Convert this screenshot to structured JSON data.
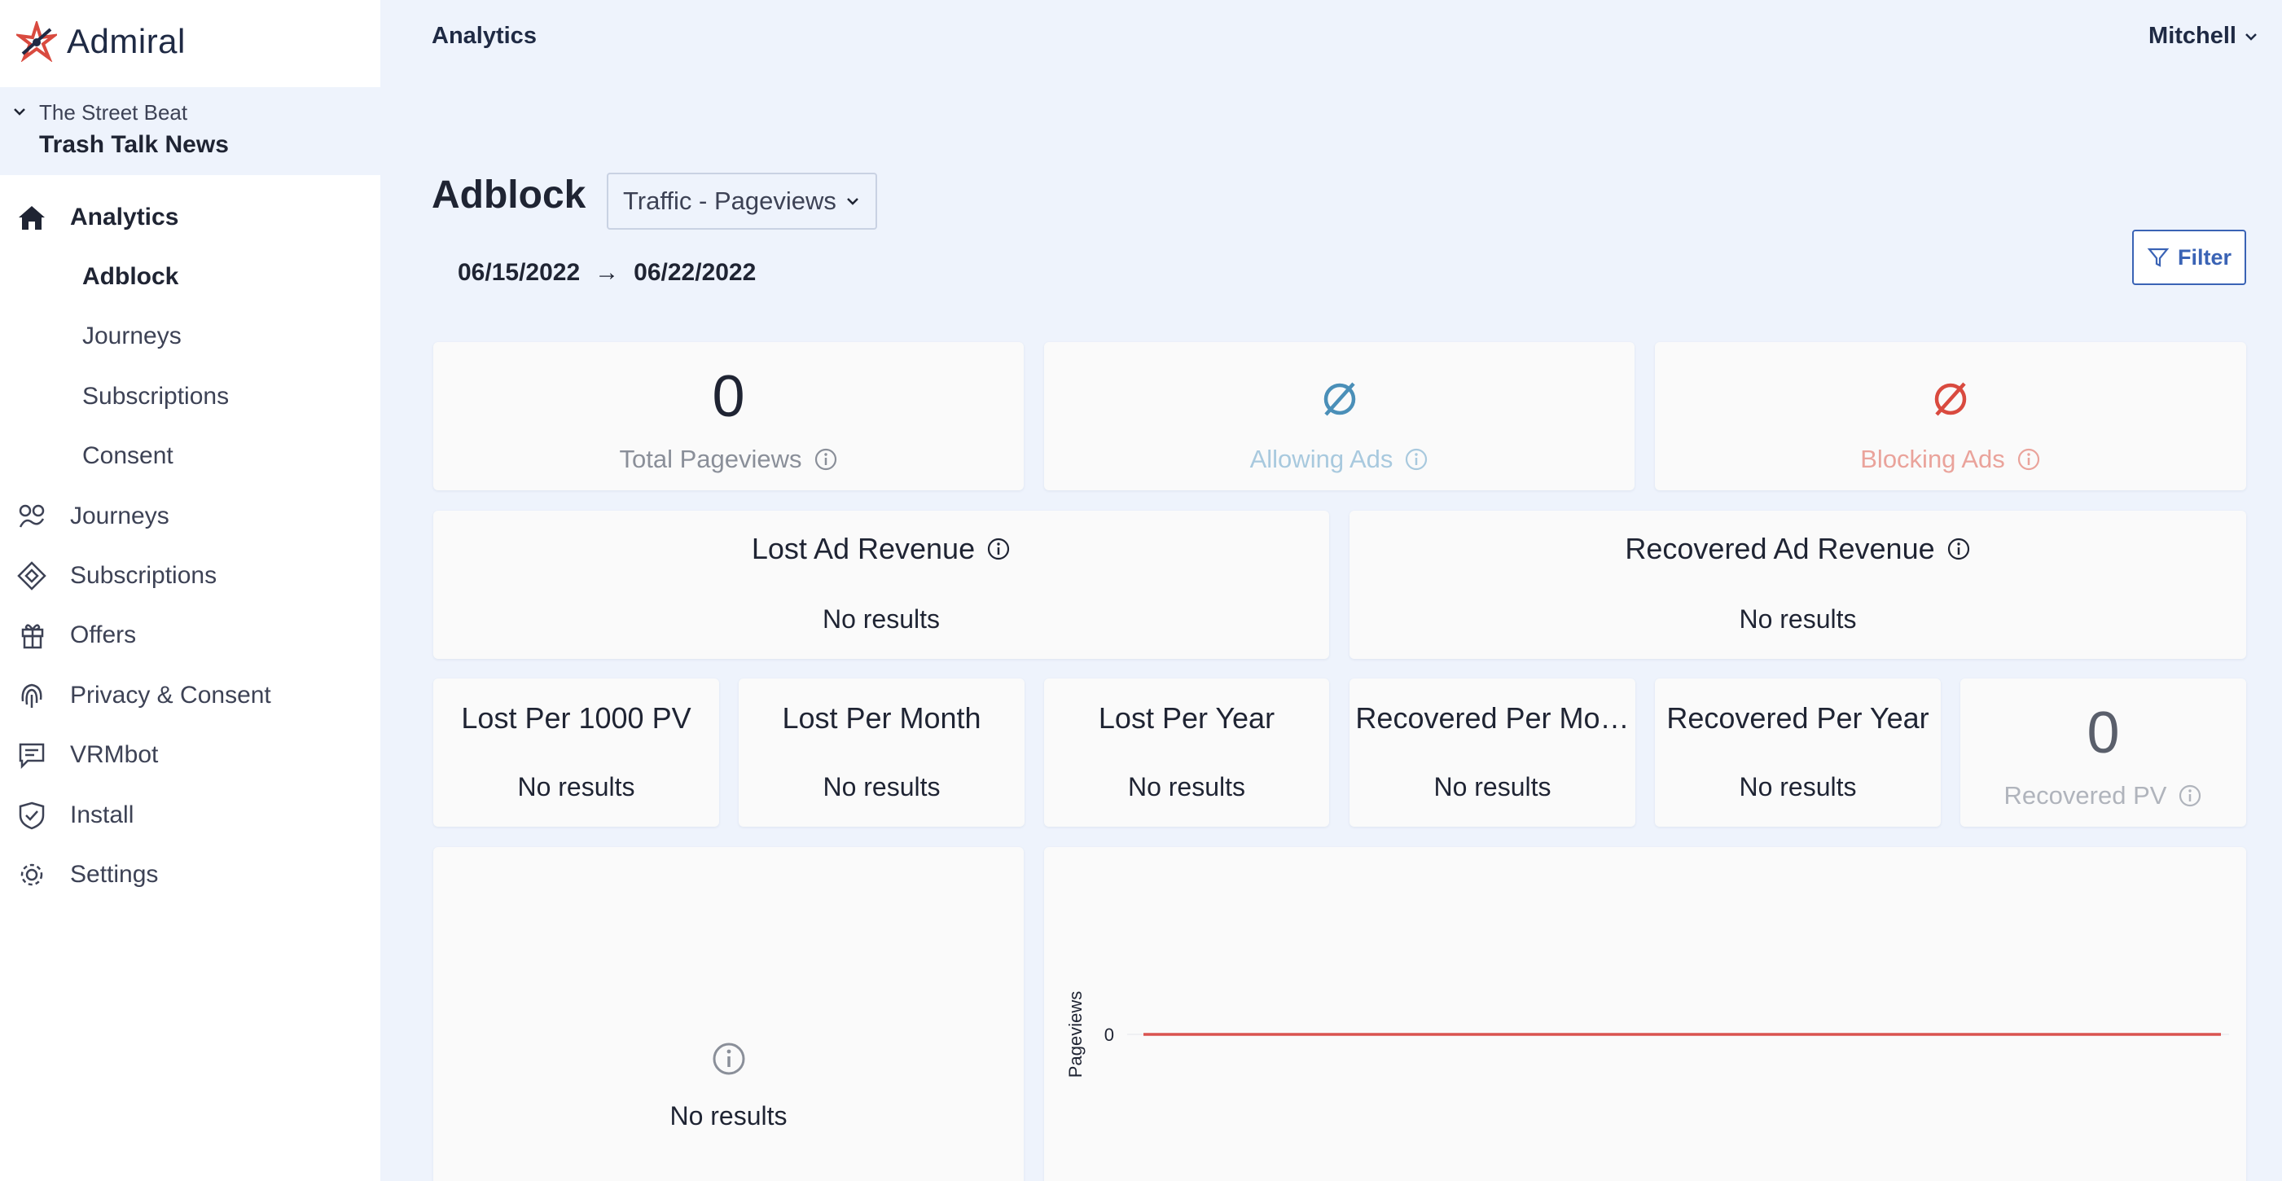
{
  "brand": {
    "name": "Admiral"
  },
  "org": {
    "parent": "The Street Beat",
    "name": "Trash Talk News"
  },
  "nav": [
    {
      "label": "Analytics",
      "icon": "home-icon",
      "active": true
    },
    {
      "label": "Adblock",
      "sub": true,
      "active": true
    },
    {
      "label": "Journeys",
      "sub": true
    },
    {
      "label": "Subscriptions",
      "sub": true
    },
    {
      "label": "Consent",
      "sub": true
    },
    {
      "label": "Journeys",
      "icon": "journeys-icon"
    },
    {
      "label": "Subscriptions",
      "icon": "subscriptions-icon"
    },
    {
      "label": "Offers",
      "icon": "gift-icon"
    },
    {
      "label": "Privacy & Consent",
      "icon": "fingerprint-icon"
    },
    {
      "label": "VRMbot",
      "icon": "chat-icon"
    },
    {
      "label": "Install",
      "icon": "shield-check-icon"
    },
    {
      "label": "Settings",
      "icon": "gear-icon"
    }
  ],
  "header": {
    "section": "Analytics",
    "user": "Mitchell"
  },
  "page": {
    "title": "Adblock",
    "metric_select": "Traffic - Pageviews",
    "date_start": "06/15/2022",
    "date_arrow": "→",
    "date_end": "06/22/2022",
    "filter_label": "Filter"
  },
  "stats": {
    "total_pageviews": {
      "value": "0",
      "label": "Total Pageviews"
    },
    "allowing_ads": {
      "label": "Allowing Ads",
      "color": "#4a8fb8",
      "label_color": "#a8c9de"
    },
    "blocking_ads": {
      "label": "Blocking Ads",
      "color": "#d94a3f",
      "label_color": "#eaa39b"
    },
    "lost_ad_revenue": {
      "title": "Lost Ad Revenue",
      "result": "No results"
    },
    "recovered_ad_revenue": {
      "title": "Recovered Ad Revenue",
      "result": "No results"
    },
    "small": [
      {
        "title": "Lost Per 1000 PV",
        "result": "No results"
      },
      {
        "title": "Lost Per Month",
        "result": "No results"
      },
      {
        "title": "Lost Per Year",
        "result": "No results"
      },
      {
        "title": "Recovered Per Mo…",
        "result": "No results"
      },
      {
        "title": "Recovered Per Year",
        "result": "No results"
      }
    ],
    "recovered_pv": {
      "value": "0",
      "label": "Recovered PV"
    },
    "panel_left": {
      "result": "No results"
    }
  },
  "chart_data": {
    "type": "line",
    "ylabel": "Pageviews",
    "yticks": [
      "0"
    ],
    "series": [
      {
        "values": [
          0,
          0
        ],
        "color": "#d9534f"
      }
    ]
  }
}
